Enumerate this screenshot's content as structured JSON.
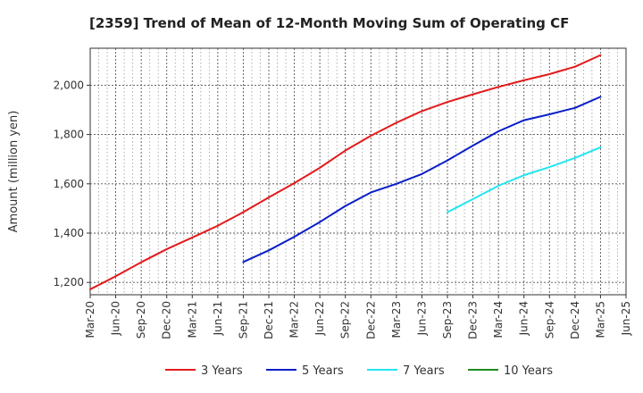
{
  "chart_data": {
    "type": "line",
    "title": "[2359]  Trend of Mean of 12-Month Moving Sum of Operating CF",
    "xlabel": "",
    "ylabel": "Amount (million yen)",
    "ylim": [
      1150,
      2150
    ],
    "yticks": [
      1200,
      1400,
      1600,
      1800,
      2000
    ],
    "ytick_labels": [
      "1,200",
      "1,400",
      "1,600",
      "1,800",
      "2,000"
    ],
    "x_categories": [
      "Mar-20",
      "Jun-20",
      "Sep-20",
      "Dec-20",
      "Mar-21",
      "Jun-21",
      "Sep-21",
      "Dec-21",
      "Mar-22",
      "Jun-22",
      "Sep-22",
      "Dec-22",
      "Mar-23",
      "Jun-23",
      "Sep-23",
      "Dec-23",
      "Mar-24",
      "Jun-24",
      "Sep-24",
      "Dec-24",
      "Mar-25",
      "Jun-25"
    ],
    "grid": true,
    "legend_position": "bottom",
    "series": [
      {
        "name": "3 Years",
        "color": "#e31a1c",
        "start_index": 0,
        "values": [
          1172,
          1225,
          1282,
          1335,
          1382,
          1430,
          1485,
          1545,
          1603,
          1665,
          1735,
          1795,
          1848,
          1895,
          1932,
          1963,
          1993,
          2020,
          2045,
          2075,
          2122
        ]
      },
      {
        "name": "5 Years",
        "color": "#0a1ec8",
        "start_index": 6,
        "values": [
          1283,
          1330,
          1385,
          1445,
          1510,
          1565,
          1600,
          1640,
          1695,
          1755,
          1813,
          1858,
          1882,
          1908,
          1953
        ]
      },
      {
        "name": "7 Years",
        "color": "#22e6f2",
        "start_index": 14,
        "values": [
          1485,
          1538,
          1592,
          1635,
          1668,
          1705,
          1748
        ]
      },
      {
        "name": "10 Years",
        "color": "#1e8c1e",
        "start_index": 0,
        "values": []
      }
    ]
  }
}
